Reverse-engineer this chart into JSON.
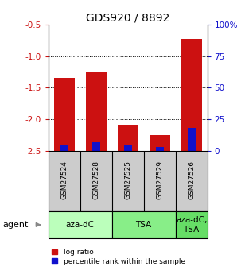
{
  "title": "GDS920 / 8892",
  "samples": [
    "GSM27524",
    "GSM27528",
    "GSM27525",
    "GSM27529",
    "GSM27526"
  ],
  "log_ratios": [
    -1.35,
    -1.25,
    -2.1,
    -2.25,
    -0.72
  ],
  "percentile_ranks": [
    5,
    7,
    5,
    3,
    18
  ],
  "ylim": [
    -2.5,
    -0.5
  ],
  "yticks_left": [
    -2.5,
    -2.0,
    -1.5,
    -1.0,
    -0.5
  ],
  "yticks_right_vals": [
    0,
    25,
    50,
    75,
    100
  ],
  "groups": [
    {
      "label": "aza-dC",
      "indices": [
        0,
        1
      ],
      "color": "#bbffbb"
    },
    {
      "label": "TSA",
      "indices": [
        2,
        3
      ],
      "color": "#88ee88"
    },
    {
      "label": "aza-dC,\nTSA",
      "indices": [
        4
      ],
      "color": "#66dd66"
    }
  ],
  "bar_color_red": "#cc1111",
  "bar_color_blue": "#1111cc",
  "bar_width": 0.65,
  "blue_bar_width": 0.25,
  "sample_box_color": "#cccccc",
  "legend_red": "log ratio",
  "legend_blue": "percentile rank within the sample",
  "title_fontsize": 10,
  "tick_fontsize": 7.5,
  "sample_fontsize": 6.5,
  "agent_fontsize": 8,
  "group_fontsize": 7.5,
  "legend_fontsize": 6.5
}
